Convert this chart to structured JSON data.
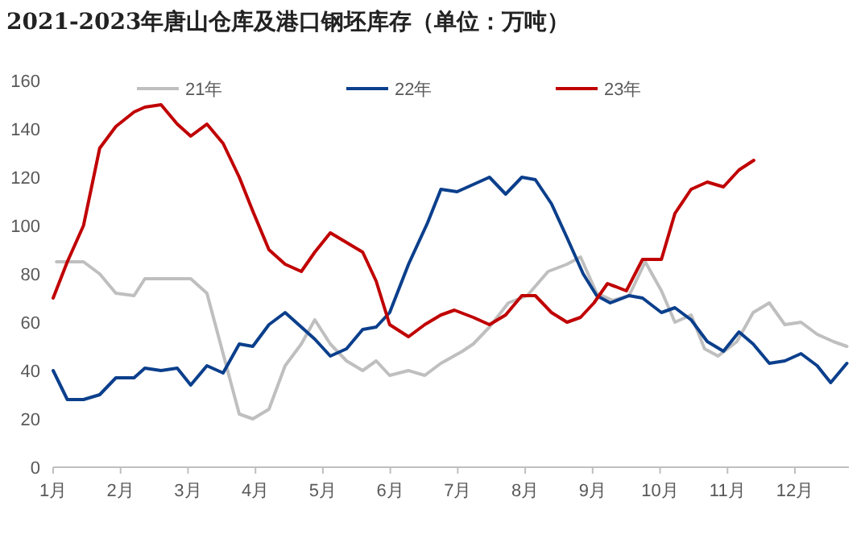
{
  "chart_data": {
    "type": "line",
    "title": "2021-2023年唐山仓库及港口钢坯库存（单位：万吨）",
    "xlim": [
      1,
      12.8
    ],
    "xticks": [
      {
        "value": 1,
        "label": "1月"
      },
      {
        "value": 2,
        "label": "2月"
      },
      {
        "value": 3,
        "label": "3月"
      },
      {
        "value": 4,
        "label": "4月"
      },
      {
        "value": 5,
        "label": "5月"
      },
      {
        "value": 6,
        "label": "6月"
      },
      {
        "value": 7,
        "label": "7月"
      },
      {
        "value": 8,
        "label": "8月"
      },
      {
        "value": 9,
        "label": "9月"
      },
      {
        "value": 10,
        "label": "10月"
      },
      {
        "value": 11,
        "label": "11月"
      },
      {
        "value": 12,
        "label": "12月"
      }
    ],
    "ylim": [
      0,
      160
    ],
    "yticks": [
      0,
      20,
      40,
      60,
      80,
      100,
      120,
      140,
      160
    ],
    "grid": false,
    "legend": "top",
    "marker": "none",
    "line_style": "solid",
    "series": [
      {
        "name": "21年",
        "color": "#bfbfbf",
        "x": [
          1.05,
          1.45,
          1.69,
          1.93,
          2.2,
          2.36,
          2.6,
          2.84,
          3.04,
          3.28,
          3.52,
          3.76,
          3.96,
          4.2,
          4.44,
          4.68,
          4.88,
          5.11,
          5.35,
          5.59,
          5.79,
          5.99,
          6.27,
          6.51,
          6.75,
          7.07,
          7.23,
          7.47,
          7.75,
          8.03,
          8.34,
          8.62,
          8.82,
          9.06,
          9.3,
          9.54,
          9.78,
          10.02,
          10.22,
          10.46,
          10.66,
          10.86,
          11.14,
          11.38,
          11.62,
          11.85,
          12.09,
          12.33,
          12.57,
          12.77
        ],
        "values": [
          85,
          85,
          80,
          72,
          71,
          78,
          78,
          78,
          78,
          72,
          47,
          22,
          20,
          24,
          42,
          51,
          61,
          51,
          44,
          40,
          44,
          38,
          40,
          38,
          43,
          48,
          51,
          58,
          68,
          71,
          81,
          84,
          87,
          72,
          69,
          71,
          85,
          73,
          60,
          63,
          49,
          46,
          52,
          64,
          68,
          59,
          60,
          55,
          52,
          50
        ]
      },
      {
        "name": "22年",
        "color": "#0b3f8c",
        "x": [
          1,
          1.21,
          1.45,
          1.69,
          1.93,
          2.2,
          2.36,
          2.6,
          2.84,
          3.04,
          3.28,
          3.52,
          3.76,
          3.96,
          4.2,
          4.44,
          4.68,
          4.88,
          5.11,
          5.35,
          5.59,
          5.79,
          5.99,
          6.27,
          6.55,
          6.75,
          6.99,
          7.23,
          7.47,
          7.71,
          7.95,
          8.15,
          8.39,
          8.62,
          8.86,
          9.06,
          9.26,
          9.54,
          9.74,
          10.02,
          10.22,
          10.46,
          10.7,
          10.94,
          11.17,
          11.38,
          11.62,
          11.85,
          12.09,
          12.33,
          12.53,
          12.77
        ],
        "values": [
          40,
          28,
          28,
          30,
          37,
          37,
          41,
          40,
          41,
          34,
          42,
          39,
          51,
          50,
          59,
          64,
          58,
          53,
          46,
          49,
          57,
          58,
          64,
          84,
          101,
          115,
          114,
          117,
          120,
          113,
          120,
          119,
          109,
          95,
          80,
          71,
          68,
          71,
          70,
          64,
          66,
          61,
          52,
          48,
          56,
          51,
          43,
          44,
          47,
          42,
          35,
          43
        ]
      },
      {
        "name": "23年",
        "color": "#c00000",
        "x": [
          1,
          1.21,
          1.45,
          1.69,
          1.93,
          2.2,
          2.36,
          2.6,
          2.84,
          3.04,
          3.28,
          3.52,
          3.76,
          3.96,
          4.2,
          4.44,
          4.68,
          4.88,
          5.11,
          5.35,
          5.59,
          5.79,
          5.99,
          6.27,
          6.51,
          6.75,
          6.95,
          7.23,
          7.47,
          7.71,
          7.95,
          8.15,
          8.39,
          8.62,
          8.82,
          9.02,
          9.22,
          9.5,
          9.74,
          10.02,
          10.22,
          10.46,
          10.7,
          10.94,
          11.17,
          11.39
        ],
        "values": [
          70,
          85,
          100,
          132,
          141,
          147,
          149,
          150,
          142,
          137,
          142,
          134,
          120,
          106,
          90,
          84,
          81,
          89,
          97,
          93,
          89,
          77,
          59,
          54,
          59,
          63,
          65,
          62,
          59,
          63,
          71,
          71,
          64,
          60,
          62,
          68,
          76,
          73,
          86,
          86,
          105,
          115,
          118,
          116,
          123,
          127
        ]
      }
    ]
  }
}
